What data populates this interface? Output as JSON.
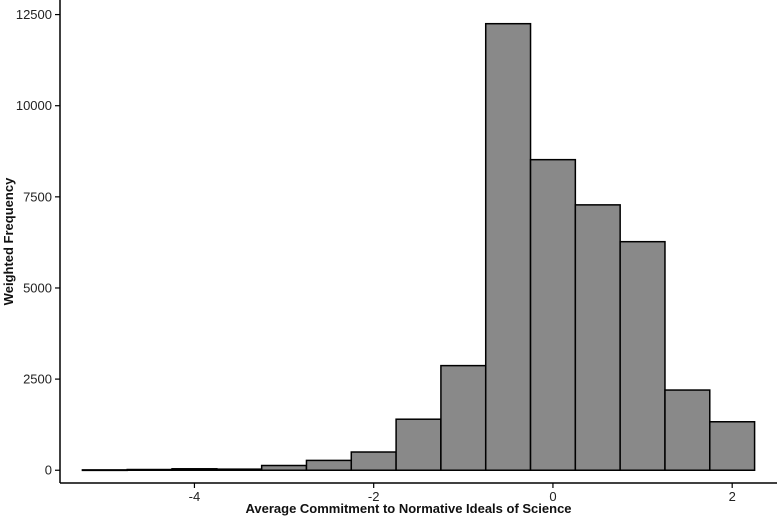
{
  "chart_data": {
    "type": "bar",
    "subtype": "histogram",
    "title": "",
    "xlabel": "Average Commitment to Normative Ideals of Science",
    "ylabel": "Weighted Frequency",
    "bin_width": 0.5,
    "bins": [
      {
        "start": -5.25,
        "end": -4.75,
        "value": 10
      },
      {
        "start": -4.75,
        "end": -4.25,
        "value": 20
      },
      {
        "start": -4.25,
        "end": -3.75,
        "value": 40
      },
      {
        "start": -3.75,
        "end": -3.25,
        "value": 30
      },
      {
        "start": -3.25,
        "end": -2.75,
        "value": 130
      },
      {
        "start": -2.75,
        "end": -2.25,
        "value": 270
      },
      {
        "start": -2.25,
        "end": -1.75,
        "value": 500
      },
      {
        "start": -1.75,
        "end": -1.25,
        "value": 1400
      },
      {
        "start": -1.25,
        "end": -0.75,
        "value": 2870
      },
      {
        "start": -0.75,
        "end": -0.25,
        "value": 12250
      },
      {
        "start": -0.25,
        "end": 0.25,
        "value": 8520
      },
      {
        "start": 0.25,
        "end": 0.75,
        "value": 7280
      },
      {
        "start": 0.75,
        "end": 1.25,
        "value": 6270
      },
      {
        "start": 1.25,
        "end": 1.75,
        "value": 2200
      },
      {
        "start": 1.75,
        "end": 2.25,
        "value": 1330
      }
    ],
    "xticks": [
      -4,
      -2,
      0,
      2
    ],
    "xtick_labels": [
      "-4",
      "-2",
      "0",
      "2"
    ],
    "yticks": [
      0,
      2500,
      5000,
      7500,
      10000,
      12500
    ],
    "ytick_labels": [
      "0",
      "2500",
      "5000",
      "7500",
      "10000",
      "12500"
    ],
    "xlim": [
      -5.5,
      2.5
    ],
    "ylim": [
      -350,
      12900
    ],
    "bar_fill": "#898989",
    "bar_stroke": "#000000",
    "grid": false,
    "legend": "none"
  }
}
